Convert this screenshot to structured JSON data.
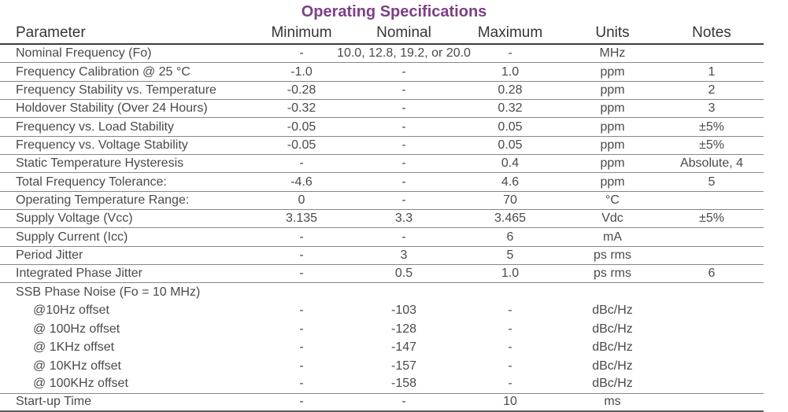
{
  "title": "Operating Specifications",
  "colors": {
    "accent_purple": "#7d3f85",
    "body_text": "#4a4a4a",
    "header_text": "#353535",
    "rule_gray": "#878787"
  },
  "table": {
    "columns": [
      "Parameter",
      "Minimum",
      "Nominal",
      "Maximum",
      "Units",
      "Notes"
    ],
    "rows": [
      {
        "parameter": "Nominal Frequency (Fo)",
        "minimum": "-",
        "nominal": "10.0, 12.8, 19.2, or 20.0",
        "maximum": "-",
        "units": "MHz",
        "notes": "",
        "wide_nominal": true
      },
      {
        "parameter": "Frequency Calibration @ 25 °C",
        "minimum": "-1.0",
        "nominal": "-",
        "maximum": "1.0",
        "units": "ppm",
        "notes": "1"
      },
      {
        "parameter": "Frequency Stability vs. Temperature",
        "minimum": "-0.28",
        "nominal": "-",
        "maximum": "0.28",
        "units": "ppm",
        "notes": "2"
      },
      {
        "parameter": "Holdover Stability (Over 24 Hours)",
        "minimum": "-0.32",
        "nominal": "-",
        "maximum": "0.32",
        "units": "ppm",
        "notes": "3"
      },
      {
        "parameter": "Frequency vs. Load Stability",
        "minimum": "-0.05",
        "nominal": "-",
        "maximum": "0.05",
        "units": "ppm",
        "notes": "±5%"
      },
      {
        "parameter": "Frequency vs. Voltage Stability",
        "minimum": "-0.05",
        "nominal": "-",
        "maximum": "0.05",
        "units": "ppm",
        "notes": "±5%"
      },
      {
        "parameter": "Static Temperature Hysteresis",
        "minimum": "-",
        "nominal": "-",
        "maximum": "0.4",
        "units": "ppm",
        "notes": "Absolute, 4"
      },
      {
        "parameter": "Total Frequency Tolerance:",
        "minimum": "-4.6",
        "nominal": "-",
        "maximum": "4.6",
        "units": "ppm",
        "notes": "5"
      },
      {
        "parameter": "Operating Temperature Range:",
        "minimum": "0",
        "nominal": "-",
        "maximum": "70",
        "units": "°C",
        "notes": ""
      },
      {
        "parameter": "Supply Voltage (Vcc)",
        "minimum": "3.135",
        "nominal": "3.3",
        "maximum": "3.465",
        "units": "Vdc",
        "notes": "±5%"
      },
      {
        "parameter": "Supply Current (Icc)",
        "minimum": "-",
        "nominal": "-",
        "maximum": "6",
        "units": "mA",
        "notes": ""
      },
      {
        "parameter": "Period Jitter",
        "minimum": "-",
        "nominal": "3",
        "maximum": "5",
        "units": "ps rms",
        "notes": ""
      },
      {
        "parameter": "Integrated Phase Jitter",
        "minimum": "-",
        "nominal": "0.5",
        "maximum": "1.0",
        "units": "ps rms",
        "notes": "6"
      },
      {
        "parameter": "SSB Phase Noise (Fo = 10 MHz)",
        "minimum": "",
        "nominal": "",
        "maximum": "",
        "units": "",
        "notes": "",
        "rule_below": false
      },
      {
        "parameter": "@10Hz offset",
        "minimum": "-",
        "nominal": "-103",
        "maximum": "-",
        "units": "dBc/Hz",
        "notes": "",
        "indent": true,
        "rule_below": false
      },
      {
        "parameter": "@ 100Hz offset",
        "minimum": "-",
        "nominal": "-128",
        "maximum": "-",
        "units": "dBc/Hz",
        "notes": "",
        "indent": true,
        "rule_below": false
      },
      {
        "parameter": "@ 1KHz offset",
        "minimum": "-",
        "nominal": "-147",
        "maximum": "-",
        "units": "dBc/Hz",
        "notes": "",
        "indent": true,
        "rule_below": false
      },
      {
        "parameter": "@ 10KHz offset",
        "minimum": "-",
        "nominal": "-157",
        "maximum": "-",
        "units": "dBc/Hz",
        "notes": "",
        "indent": true,
        "rule_below": false
      },
      {
        "parameter": "@ 100KHz offset",
        "minimum": "-",
        "nominal": "-158",
        "maximum": "-",
        "units": "dBc/Hz",
        "notes": "",
        "indent": true
      },
      {
        "parameter": "Start-up Time",
        "minimum": "-",
        "nominal": "-",
        "maximum": "10",
        "units": "ms",
        "notes": "",
        "bottom": true
      }
    ]
  }
}
